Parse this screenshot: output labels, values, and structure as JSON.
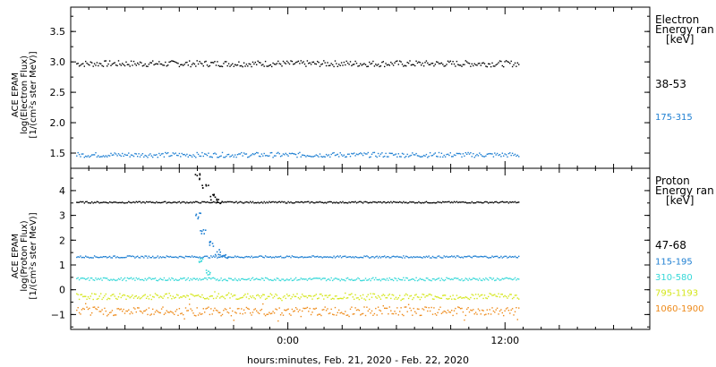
{
  "colors": {
    "black": "#000000",
    "blue": "#1e7fd2",
    "cyan": "#35d8d8",
    "yellow": "#d4e61a",
    "orange": "#ee8a1a"
  },
  "chart_data": [
    {
      "type": "scatter",
      "ylabel": [
        "ACE EPAM",
        "log(Electron Flux)",
        "[1/(cm²s ster MeV)]"
      ],
      "ylim": [
        1.25,
        3.9
      ],
      "yticks": [
        "1.5",
        "2.0",
        "2.5",
        "3.0",
        "3.5"
      ],
      "ytick_values": [
        1.5,
        2.0,
        2.5,
        3.0,
        3.5
      ],
      "legend_title": [
        "Electron",
        "Energy ran",
        "[keV]"
      ],
      "series": [
        {
          "name": "38-53",
          "color": "#000000",
          "mean": 2.98,
          "jitter": 0.05,
          "spikes": [],
          "marker": "dot"
        },
        {
          "name": "175-315",
          "color": "#1e7fd2",
          "mean": 1.48,
          "jitter": 0.04,
          "spikes": [],
          "marker": "dot"
        }
      ]
    },
    {
      "type": "scatter",
      "ylabel": [
        "ACE EPAM",
        "log(Proton Flux)",
        "[1/(cm²s ster MeV)]"
      ],
      "ylim": [
        -1.6,
        4.9
      ],
      "yticks": [
        "−1",
        "0",
        "1",
        "2",
        "3",
        "4"
      ],
      "ytick_values": [
        -1,
        0,
        1,
        2,
        3,
        4
      ],
      "legend_title": [
        "Proton",
        "Energy ran",
        "[keV]"
      ],
      "series": [
        {
          "name": "47-68",
          "color": "#000000",
          "mean": 3.55,
          "jitter": 0.03,
          "spikes": [
            [
              -5.0,
              4.6
            ],
            [
              -4.6,
              4.2
            ],
            [
              -4.2,
              3.75
            ],
            [
              -3.8,
              3.6
            ]
          ]
        },
        {
          "name": "115-195",
          "color": "#1e7fd2",
          "mean": 1.35,
          "jitter": 0.04,
          "spikes": [
            [
              -5.0,
              3.0
            ],
            [
              -4.7,
              2.4
            ],
            [
              -4.3,
              1.9
            ],
            [
              -3.9,
              1.55
            ],
            [
              -3.5,
              1.42
            ]
          ]
        },
        {
          "name": "310-580",
          "color": "#35d8d8",
          "mean": 0.45,
          "jitter": 0.06,
          "spikes": [
            [
              -4.9,
              1.2
            ],
            [
              -4.4,
              0.75
            ]
          ]
        },
        {
          "name": "795-1193",
          "color": "#d4e61a",
          "mean": -0.25,
          "jitter": 0.12,
          "spikes": []
        },
        {
          "name": "1060-1900",
          "color": "#ee8a1a",
          "mean": -0.85,
          "jitter": 0.18,
          "spikes": []
        }
      ]
    }
  ],
  "x_axis": {
    "xlim": [
      -12,
      20
    ],
    "data_end": 12.8,
    "ticks": [
      "0:00",
      "12:00"
    ],
    "tick_values": [
      0,
      12
    ],
    "label": "hours:minutes, Feb. 21, 2020 - Feb. 22, 2020"
  }
}
